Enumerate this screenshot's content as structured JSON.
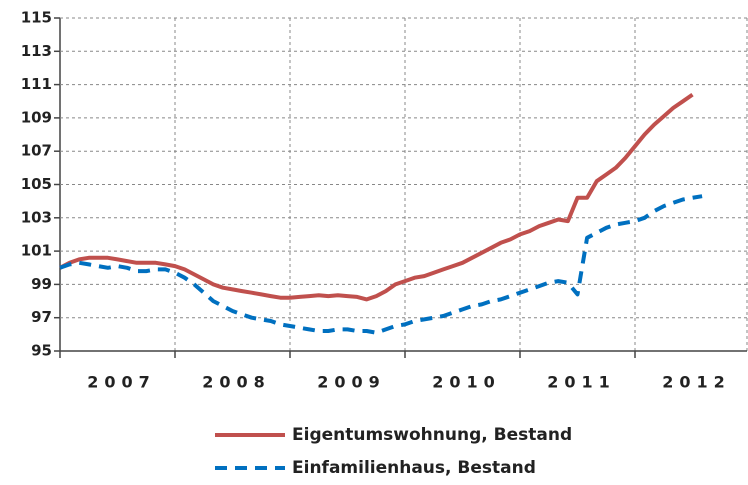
{
  "chart_data": {
    "type": "line",
    "categories": [
      null,
      null,
      null,
      null,
      null,
      null,
      "2007",
      null,
      null,
      null,
      null,
      null,
      null,
      null,
      null,
      null,
      null,
      null,
      "2008",
      null,
      null,
      null,
      null,
      null,
      null,
      null,
      null,
      null,
      null,
      null,
      "2009",
      null,
      null,
      null,
      null,
      null,
      null,
      null,
      null,
      null,
      null,
      null,
      "2010",
      null,
      null,
      null,
      null,
      null,
      null,
      null,
      null,
      null,
      null,
      null,
      "2011",
      null,
      null,
      null,
      null,
      null,
      null,
      null,
      null,
      null,
      null,
      null,
      "2012",
      null
    ],
    "series": [
      {
        "name": "Eigentumswohnung, Bestand",
        "color": "#c0504d",
        "dash": false,
        "values": [
          100,
          100.3,
          100.5,
          100.6,
          100.6,
          100.6,
          100.5,
          100.4,
          100.3,
          100.3,
          100.3,
          100.2,
          100.1,
          99.9,
          99.6,
          99.3,
          99.0,
          98.8,
          98.7,
          98.6,
          98.5,
          98.4,
          98.3,
          98.2,
          98.2,
          98.25,
          98.3,
          98.35,
          98.3,
          98.35,
          98.3,
          98.25,
          98.1,
          98.3,
          98.6,
          99.0,
          99.2,
          99.4,
          99.5,
          99.7,
          99.9,
          100.1,
          100.3,
          100.6,
          100.9,
          101.2,
          101.5,
          101.7,
          102.0,
          102.2,
          102.5,
          102.7,
          102.9,
          102.8,
          104.2,
          104.2,
          105.2,
          105.6,
          106.0,
          106.6,
          107.3,
          108.0,
          108.6,
          109.1,
          109.6,
          110.0,
          110.4,
          null
        ]
      },
      {
        "name": "Einfamilienhaus, Bestand",
        "color": "#0070c0",
        "dash": true,
        "values": [
          100,
          100.2,
          100.3,
          100.2,
          100.1,
          100.0,
          100.1,
          100.0,
          99.8,
          99.8,
          99.9,
          99.9,
          99.7,
          99.4,
          99.0,
          98.5,
          98.0,
          97.7,
          97.4,
          97.2,
          97.0,
          96.9,
          96.8,
          96.6,
          96.5,
          96.4,
          96.3,
          96.2,
          96.2,
          96.3,
          96.3,
          96.2,
          96.2,
          96.1,
          96.3,
          96.5,
          96.6,
          96.8,
          96.9,
          97.0,
          97.1,
          97.3,
          97.5,
          97.7,
          97.8,
          98.0,
          98.1,
          98.3,
          98.5,
          98.7,
          98.9,
          99.1,
          99.2,
          99.1,
          98.4,
          101.8,
          102.1,
          102.4,
          102.6,
          102.7,
          102.8,
          103.0,
          103.4,
          103.7,
          103.9,
          104.1,
          104.2,
          104.3
        ]
      }
    ],
    "ylim": [
      95,
      115
    ],
    "yticks": [
      95,
      97,
      99,
      101,
      103,
      105,
      107,
      109,
      111,
      113,
      115
    ],
    "grid": true
  }
}
